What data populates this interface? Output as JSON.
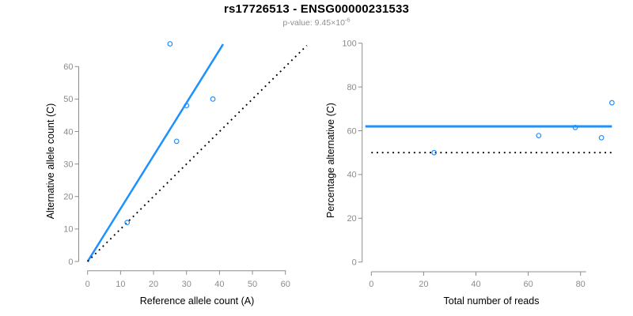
{
  "header": {
    "title": "rs17726513 - ENSG00000231533",
    "p_value_prefix": "p-value: 9.45×10",
    "p_value_exponent": "-6"
  },
  "colors": {
    "accent_blue": "#1e90ff",
    "axis_gray": "#8c8c8c",
    "label_black": "#000000",
    "subtitle_gray": "#8f8f8f",
    "background": "#ffffff"
  },
  "chart_data": [
    {
      "type": "scatter",
      "name": "allele-counts",
      "title": "",
      "xlabel": "Reference allele count (A)",
      "ylabel": "Alternative allele count (C)",
      "xticks": [
        0,
        10,
        20,
        30,
        40,
        50,
        60
      ],
      "yticks": [
        0,
        10,
        20,
        30,
        40,
        50,
        60
      ],
      "xlim": [
        0,
        60
      ],
      "ylim": [
        0,
        67
      ],
      "grid": false,
      "legend": "none",
      "points": [
        [
          25,
          67
        ],
        [
          30,
          48
        ],
        [
          38,
          50
        ],
        [
          27,
          37
        ],
        [
          12,
          12
        ]
      ],
      "lines": [
        {
          "name": "fit-line",
          "style": "solid",
          "color": "blue",
          "x": [
            0,
            41.1
          ],
          "y": [
            0,
            66.9
          ]
        },
        {
          "name": "identity-line",
          "style": "dotted",
          "color": "black",
          "x": [
            0,
            66.5
          ],
          "y": [
            0,
            66.5
          ]
        }
      ]
    },
    {
      "type": "scatter",
      "name": "percentage-vs-reads",
      "title": "",
      "xlabel": "Total number of reads",
      "ylabel": "Percentage alternative (C)",
      "xticks": [
        0,
        20,
        40,
        60,
        80
      ],
      "yticks": [
        0,
        20,
        40,
        60,
        80,
        100
      ],
      "xlim": [
        0,
        92
      ],
      "ylim": [
        0,
        100
      ],
      "grid": false,
      "legend": "none",
      "points": [
        [
          24,
          50
        ],
        [
          64,
          57.8
        ],
        [
          78,
          61.5
        ],
        [
          88,
          56.8
        ],
        [
          92,
          72.8
        ]
      ],
      "lines": [
        {
          "name": "fit-line",
          "style": "solid",
          "color": "blue",
          "x": [
            -2.3,
            92
          ],
          "y": [
            62,
            62
          ]
        },
        {
          "name": "null-line",
          "style": "dotted",
          "color": "black",
          "x": [
            0,
            92.5
          ],
          "y": [
            50,
            50
          ]
        }
      ]
    }
  ]
}
